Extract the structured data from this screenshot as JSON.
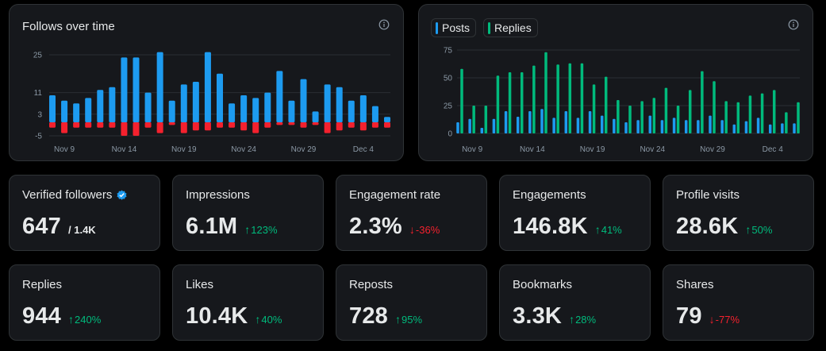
{
  "follows_chart": {
    "title": "Follows over time",
    "info_icon": "info-icon"
  },
  "posts_chart": {
    "legend": [
      {
        "label": "Posts",
        "color": "#1d9bf0"
      },
      {
        "label": "Replies",
        "color": "#00ba7c"
      }
    ],
    "info_icon": "info-icon"
  },
  "chart_data": [
    {
      "type": "bar",
      "title": "Follows over time",
      "ylim": [
        -5,
        25
      ],
      "yticks": [
        25,
        11,
        3,
        -5
      ],
      "xticks": [
        "Nov 9",
        "Nov 14",
        "Nov 19",
        "Nov 24",
        "Nov 29",
        "Dec 4"
      ],
      "categories": [
        "Nov 8",
        "Nov 9",
        "Nov 10",
        "Nov 11",
        "Nov 12",
        "Nov 13",
        "Nov 14",
        "Nov 15",
        "Nov 16",
        "Nov 17",
        "Nov 18",
        "Nov 19",
        "Nov 20",
        "Nov 21",
        "Nov 22",
        "Nov 23",
        "Nov 24",
        "Nov 25",
        "Nov 26",
        "Nov 27",
        "Nov 28",
        "Nov 29",
        "Nov 30",
        "Dec 1",
        "Dec 2",
        "Dec 3",
        "Dec 4",
        "Dec 5",
        "Dec 6"
      ],
      "series": [
        {
          "name": "Follows",
          "color": "#1d9bf0",
          "values": [
            10,
            8,
            7,
            9,
            12,
            13,
            24,
            24,
            11,
            26,
            8,
            14,
            15,
            26,
            18,
            7,
            10,
            9,
            11,
            19,
            8,
            16,
            4,
            14,
            13,
            8,
            10,
            6,
            2
          ]
        },
        {
          "name": "Unfollows",
          "color": "#f4212e",
          "values": [
            -2,
            -4,
            -2,
            -2,
            -2,
            -2,
            -5,
            -5,
            -2,
            -4,
            -1,
            -4,
            -3,
            -3,
            -2,
            -2,
            -3,
            -4,
            -2,
            -1,
            -1,
            -2,
            -1,
            -4,
            -3,
            -2,
            -3,
            -2,
            -2
          ]
        }
      ]
    },
    {
      "type": "bar",
      "ylim": [
        0,
        80
      ],
      "yticks": [
        75,
        50,
        25,
        0
      ],
      "xticks": [
        "Nov 9",
        "Nov 14",
        "Nov 19",
        "Nov 24",
        "Nov 29",
        "Dec 4"
      ],
      "categories": [
        "Nov 8",
        "Nov 9",
        "Nov 10",
        "Nov 11",
        "Nov 12",
        "Nov 13",
        "Nov 14",
        "Nov 15",
        "Nov 16",
        "Nov 17",
        "Nov 18",
        "Nov 19",
        "Nov 20",
        "Nov 21",
        "Nov 22",
        "Nov 23",
        "Nov 24",
        "Nov 25",
        "Nov 26",
        "Nov 27",
        "Nov 28",
        "Nov 29",
        "Nov 30",
        "Dec 1",
        "Dec 2",
        "Dec 3",
        "Dec 4",
        "Dec 5",
        "Dec 6"
      ],
      "series": [
        {
          "name": "Posts",
          "color": "#1d9bf0",
          "values": [
            10,
            13,
            5,
            13,
            20,
            15,
            20,
            22,
            14,
            20,
            14,
            20,
            16,
            13,
            10,
            12,
            16,
            12,
            14,
            12,
            12,
            16,
            12,
            8,
            11,
            14,
            8,
            9,
            9
          ]
        },
        {
          "name": "Replies",
          "color": "#00ba7c",
          "values": [
            58,
            25,
            25,
            52,
            55,
            55,
            61,
            73,
            62,
            63,
            63,
            44,
            51,
            30,
            25,
            29,
            32,
            41,
            25,
            39,
            56,
            47,
            29,
            28,
            34,
            36,
            39,
            19,
            28
          ]
        }
      ]
    }
  ],
  "metrics_row1": [
    {
      "label": "Verified followers",
      "value": "647",
      "sub": "/ 1.4K",
      "verified": true
    },
    {
      "label": "Impressions",
      "value": "6.1M",
      "change": "123%",
      "dir": "up"
    },
    {
      "label": "Engagement rate",
      "value": "2.3%",
      "change": "-36%",
      "dir": "down"
    },
    {
      "label": "Engagements",
      "value": "146.8K",
      "change": "41%",
      "dir": "up"
    },
    {
      "label": "Profile visits",
      "value": "28.6K",
      "change": "50%",
      "dir": "up"
    }
  ],
  "metrics_row2": [
    {
      "label": "Replies",
      "value": "944",
      "change": "240%",
      "dir": "up"
    },
    {
      "label": "Likes",
      "value": "10.4K",
      "change": "40%",
      "dir": "up"
    },
    {
      "label": "Reposts",
      "value": "728",
      "change": "95%",
      "dir": "up"
    },
    {
      "label": "Bookmarks",
      "value": "3.3K",
      "change": "28%",
      "dir": "up"
    },
    {
      "label": "Shares",
      "value": "79",
      "change": "-77%",
      "dir": "down"
    }
  ],
  "colors": {
    "up": "#00ba7c",
    "down": "#f4212e",
    "accent": "#1d9bf0"
  },
  "arrows": {
    "up": "↑",
    "down": "↓"
  }
}
